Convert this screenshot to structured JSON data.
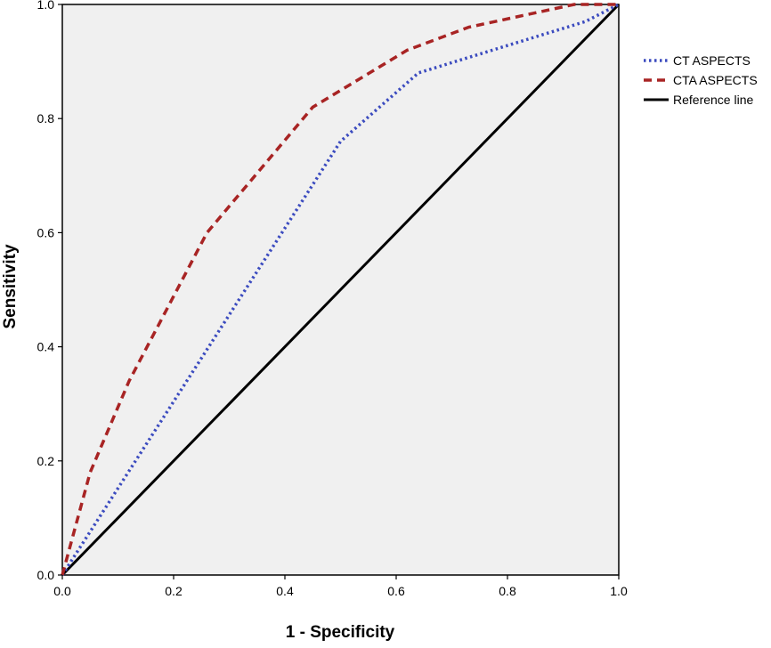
{
  "chart_data": {
    "type": "line",
    "title": "",
    "xlabel": "1 - Specificity",
    "ylabel": "Sensitivity",
    "xlim": [
      0,
      1
    ],
    "ylim": [
      0,
      1
    ],
    "xticks": [
      "0.0",
      "0.2",
      "0.4",
      "0.6",
      "0.8",
      "1.0"
    ],
    "yticks": [
      "0.0",
      "0.2",
      "0.4",
      "0.6",
      "0.8",
      "1.0"
    ],
    "grid": false,
    "legend_placement": "right",
    "plot_background": "#f0f0f0",
    "series": [
      {
        "name": "CT ASPECTS",
        "color": "#3b4bbf",
        "style": "dotted",
        "x": [
          0.0,
          0.5,
          0.64,
          0.94,
          1.0
        ],
        "y": [
          0.0,
          0.76,
          0.88,
          0.97,
          1.0
        ]
      },
      {
        "name": "CTA ASPECTS",
        "color": "#a82424",
        "style": "dashed",
        "x": [
          0.0,
          0.05,
          0.12,
          0.26,
          0.45,
          0.62,
          0.73,
          0.92,
          1.0
        ],
        "y": [
          0.0,
          0.18,
          0.34,
          0.6,
          0.82,
          0.92,
          0.96,
          1.0,
          1.0
        ]
      },
      {
        "name": "Reference line",
        "color": "#000000",
        "style": "solid",
        "x": [
          0.0,
          1.0
        ],
        "y": [
          0.0,
          1.0
        ]
      }
    ]
  }
}
